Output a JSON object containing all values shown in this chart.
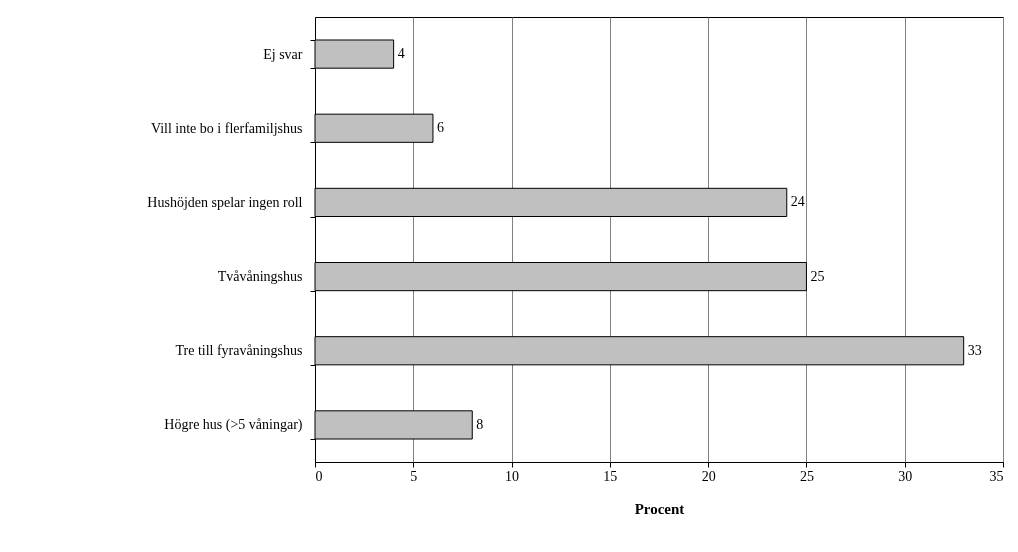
{
  "chart_data": {
    "type": "bar",
    "orientation": "horizontal",
    "xlabel": "Procent",
    "categories": [
      "Ej svar",
      "Vill inte bo i flerfamiljshus",
      "Hushöjden spelar ingen roll",
      "Tvåvåningshus",
      "Tre till fyravåningshus",
      "Högre hus (>5 våningar)"
    ],
    "values": [
      4,
      6,
      24,
      25,
      33,
      8
    ],
    "color": "#c0c0c0",
    "xlim": [
      0,
      35
    ],
    "xticks": [
      0,
      5,
      10,
      15,
      20,
      25,
      30,
      35
    ],
    "grid": "x",
    "data_labels": true
  }
}
